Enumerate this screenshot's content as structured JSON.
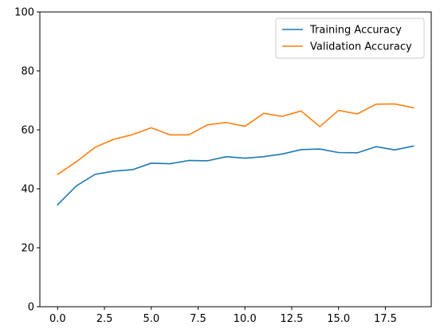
{
  "chart_data": {
    "type": "line",
    "title": "",
    "xlabel": "",
    "ylabel": "",
    "x": [
      0,
      1,
      2,
      3,
      4,
      5,
      6,
      7,
      8,
      9,
      10,
      11,
      12,
      13,
      14,
      15,
      16,
      17,
      18,
      19
    ],
    "series": [
      {
        "name": "Training Accuracy",
        "color": "#1f77b4",
        "values": [
          34.6,
          41.0,
          44.9,
          46.0,
          46.5,
          48.7,
          48.5,
          49.6,
          49.5,
          50.9,
          50.4,
          50.9,
          51.8,
          53.3,
          53.5,
          52.3,
          52.2,
          54.3,
          53.2,
          54.5
        ]
      },
      {
        "name": "Validation Accuracy",
        "color": "#ff7f0e",
        "values": [
          44.9,
          49.2,
          54.1,
          56.8,
          58.4,
          60.7,
          58.3,
          58.3,
          61.7,
          62.5,
          61.2,
          65.6,
          64.6,
          66.4,
          61.1,
          66.6,
          65.4,
          68.7,
          68.8,
          67.5
        ]
      }
    ],
    "xlim": [
      -0.95,
      19.95
    ],
    "ylim": [
      0,
      100
    ],
    "xticks": [
      0,
      2.5,
      5,
      7.5,
      10,
      12.5,
      15,
      17.5
    ],
    "xtick_labels": [
      "0.0",
      "2.5",
      "5.0",
      "7.5",
      "10.0",
      "12.5",
      "15.0",
      "17.5"
    ],
    "yticks": [
      0,
      20,
      40,
      60,
      80,
      100
    ],
    "ytick_labels": [
      "0",
      "20",
      "40",
      "60",
      "80",
      "100"
    ],
    "grid": false,
    "legend_position": "top-right"
  }
}
